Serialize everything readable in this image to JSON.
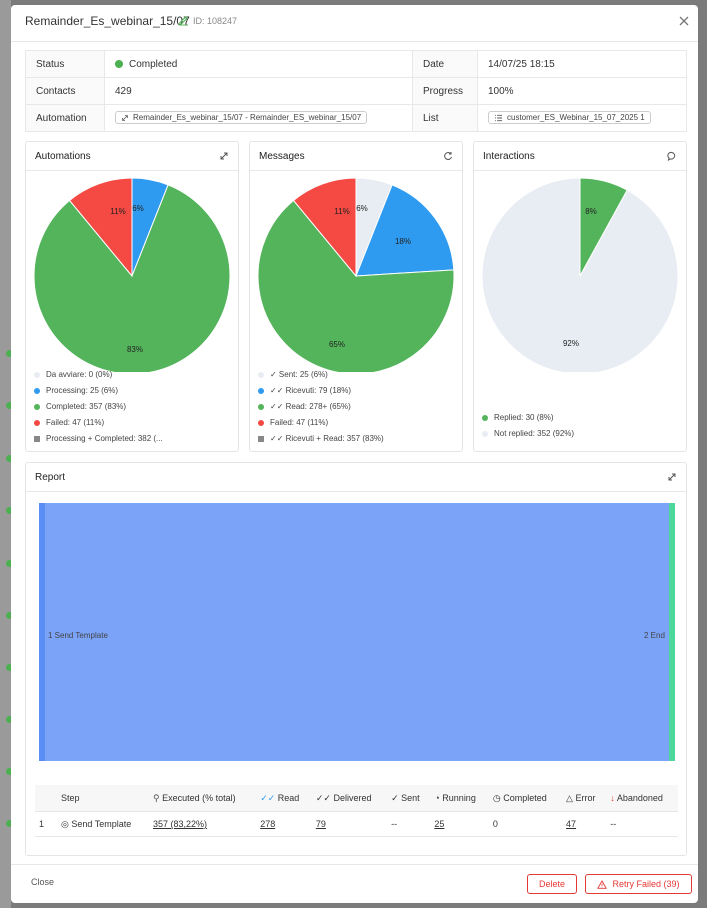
{
  "modal": {
    "title": "Remainder_Es_webinar_15/07",
    "id_label": "ID: 108247"
  },
  "info": {
    "status_key": "Status",
    "status_val": "Completed",
    "date_key": "Date",
    "date_val": "14/07/25 18:15",
    "contacts_key": "Contacts",
    "contacts_val": "429",
    "progress_key": "Progress",
    "progress_val": "100%",
    "automation_key": "Automation",
    "automation_val": "Remainder_Es_webinar_15/07 - Remainder_ES_webinar_15/07",
    "list_key": "List",
    "list_val": "customer_ES_Webinar_15_07_2025 1"
  },
  "cards": {
    "automations": {
      "title": "Automations",
      "labels": [
        "6%",
        "11%",
        "83%"
      ],
      "legend": [
        "Da avviare: 0 (0%)",
        "Processing: 25 (6%)",
        "Completed: 357 (83%)",
        "Failed: 47 (11%)",
        "Processing + Completed: 382 (..."
      ]
    },
    "messages": {
      "title": "Messages",
      "labels": [
        "6%",
        "11%",
        "18%",
        "65%"
      ],
      "legend": [
        "✓ Sent: 25 (6%)",
        "✓✓ Ricevuti: 79 (18%)",
        "✓✓ Read: 278+ (65%)",
        "Failed: 47 (11%)",
        "✓✓ Ricevuti + Read: 357 (83%)"
      ]
    },
    "interactions": {
      "title": "Interactions",
      "labels": [
        "8%",
        "92%"
      ],
      "legend": [
        "Replied: 30 (8%)",
        "Not replied: 352 (92%)"
      ]
    }
  },
  "colors": {
    "green": "#54b45c",
    "blue": "#2f9bf0",
    "red": "#f44a43",
    "light": "#e8edf3",
    "sankey": "#7ba3f7",
    "sankey_end": "#4cd89b"
  },
  "report": {
    "title": "Report",
    "node_start": "1 Send Template",
    "node_end": "2 End",
    "headers": [
      "Step",
      "Executed (% total)",
      "Read",
      "Delivered",
      "Sent",
      "Running",
      "Completed",
      "Error",
      "Abandoned"
    ],
    "row": {
      "num": "1",
      "step": "Send Template",
      "executed": "357 (83,22%)",
      "read": "278",
      "delivered": "79",
      "sent": "--",
      "running": "25",
      "completed": "0",
      "error": "47",
      "abandoned": "--"
    }
  },
  "footer": {
    "close": "Close",
    "delete": "Delete",
    "retry": "Retry Failed (39)"
  }
}
